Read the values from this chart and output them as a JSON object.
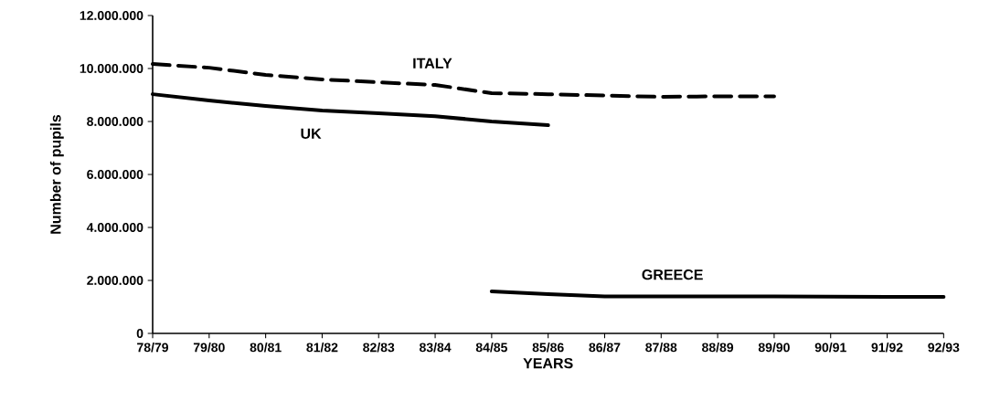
{
  "chart_data": {
    "type": "line",
    "xlabel": "YEARS",
    "ylabel": "Number  of pupils",
    "categories": [
      "78/79",
      "79/80",
      "80/81",
      "81/82",
      "82/83",
      "83/84",
      "84/85",
      "85/86",
      "86/87",
      "87/88",
      "88/89",
      "89/90",
      "90/91",
      "91/92",
      "92/93"
    ],
    "series": [
      {
        "name": "ITALY",
        "color": "#000000",
        "line_style": "dashed",
        "values": [
          10170000,
          10030000,
          9760000,
          9590000,
          9480000,
          9380000,
          9070000,
          9030000,
          8980000,
          8930000,
          8950000,
          8950000,
          null,
          null,
          null
        ]
      },
      {
        "name": "UK",
        "color": "#000000",
        "line_style": "solid",
        "values": [
          9030000,
          8790000,
          8590000,
          8410000,
          8310000,
          8200000,
          8000000,
          7860000,
          null,
          null,
          null,
          null,
          null,
          null,
          null
        ]
      },
      {
        "name": "GREECE",
        "color": "#000000",
        "line_style": "solid",
        "values": [
          null,
          null,
          null,
          null,
          null,
          null,
          1590000,
          1480000,
          1400000,
          1400000,
          1400000,
          1400000,
          1390000,
          1380000,
          1380000
        ]
      }
    ],
    "ylim": [
      0,
      12000000
    ],
    "yticks": [
      0,
      {
        "value": 2000000,
        "label": "2.000.000"
      },
      {
        "value": 4000000,
        "label": "4.000.000"
      },
      {
        "value": 6000000,
        "label": "6.000.000"
      },
      {
        "value": 8000000,
        "label": "8.000.000"
      },
      {
        "value": 10000000,
        "label": "10.000.000"
      },
      {
        "value": 12000000,
        "label": "12.000.000"
      }
    ],
    "grid": false,
    "legend": false,
    "marker": "none"
  }
}
